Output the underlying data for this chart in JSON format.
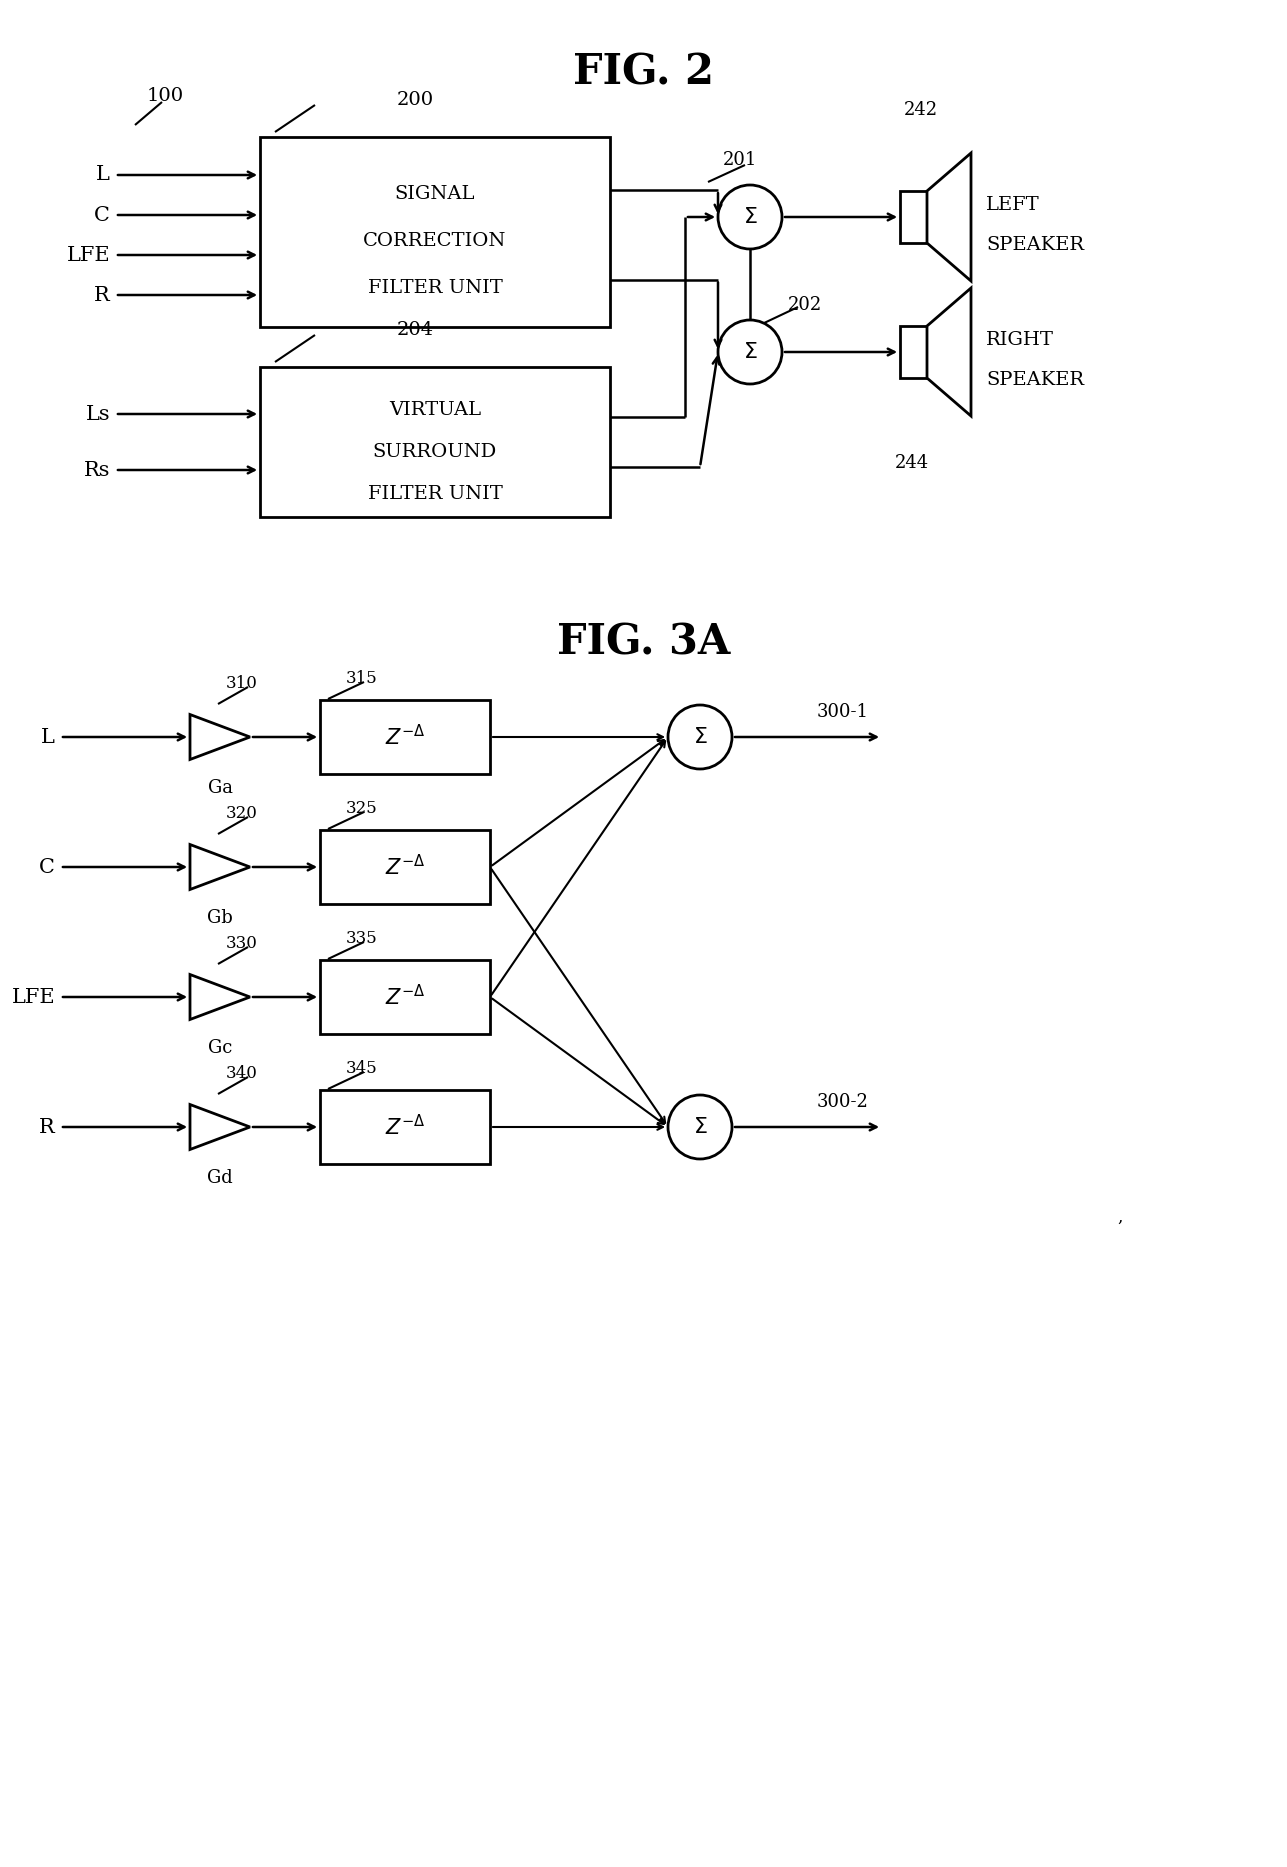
{
  "fig2_title": "FIG. 2",
  "fig3a_title": "FIG. 3A",
  "bg_color": "#ffffff",
  "line_color": "#000000",
  "fig2": {
    "inputs": [
      "L",
      "C",
      "LFE",
      "R"
    ],
    "scf_label": [
      "SIGNAL",
      "CORRECTION",
      "FILTER UNIT"
    ],
    "scf_num": "200",
    "bus_num": "100",
    "sum1_num": "201",
    "sum2_num": "202",
    "vsf_label": [
      "VIRTUAL",
      "SURROUND",
      "FILTER UNIT"
    ],
    "vsf_num": "204",
    "vsf_inputs": [
      "Ls",
      "Rs"
    ],
    "left_speaker_num": "242",
    "right_speaker_num": "244",
    "left_speaker_label": [
      "LEFT",
      "SPEAKER"
    ],
    "right_speaker_label": [
      "RIGHT",
      "SPEAKER"
    ]
  },
  "fig3a": {
    "inputs": [
      "L",
      "C",
      "LFE",
      "R"
    ],
    "gains": [
      "Ga",
      "Gb",
      "Gc",
      "Gd"
    ],
    "gain_nums": [
      "310",
      "320",
      "330",
      "340"
    ],
    "delay_nums": [
      "315",
      "325",
      "335",
      "345"
    ],
    "sum1_num": "300-1",
    "sum2_num": "300-2"
  }
}
